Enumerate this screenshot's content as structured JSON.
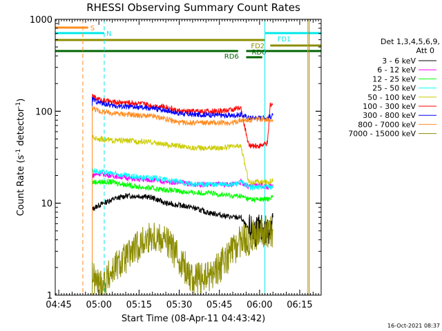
{
  "chart_data": {
    "type": "line",
    "title": "RHESSI Observing Summary Count Rates",
    "xlabel": "Start Time (08-Apr-11 04:43:42)",
    "ylabel_main": "Count Rate (s",
    "ylabel_sup1": "-1",
    "ylabel_mid": " detector",
    "ylabel_sup2": "-1",
    "ylabel_end": ")",
    "y_scale": "log",
    "ylim": [
      1,
      1000
    ],
    "xlim": [
      "04:43:42",
      "06:23:00"
    ],
    "x_ticks": [
      "04:45",
      "05:00",
      "05:15",
      "05:30",
      "05:45",
      "06:00",
      "06:15"
    ],
    "y_ticks": [
      "1",
      "10",
      "100",
      "1000"
    ],
    "legend_title_1": "Det 1,3,4,5,6,9,",
    "legend_title_2": "Att 0",
    "legend_placement": "right",
    "timestamp": "16-Oct-2021 08:37",
    "flag_bars": [
      {
        "label": "S",
        "color": "#ff8c20",
        "start": "04:43:42",
        "end": "04:56:00",
        "level": 1
      },
      {
        "label": "N",
        "color": "#00e8e8",
        "start": "04:43:42",
        "end": "05:02:00",
        "level": 2
      },
      {
        "label": "FD1",
        "color": "#8c8c00",
        "start": "04:43:42",
        "end": "06:02:00",
        "level": 3
      },
      {
        "label": "FD1",
        "color": "#00e8e8",
        "start": "06:02:00",
        "end": "06:23:00",
        "level": 2
      },
      {
        "label": "FD2",
        "color": "#8c8c00",
        "start": "06:04:00",
        "end": "06:23:00",
        "level": 4
      },
      {
        "label": "RD6",
        "color": "#006400",
        "start": "04:43:42",
        "end": "05:52:00",
        "level": 5
      },
      {
        "label": "RD6",
        "color": "#006400",
        "start": "05:55:00",
        "end": "06:23:00",
        "level": 5
      },
      {
        "label": "RD0",
        "color": "#006400",
        "start": "05:55:00",
        "end": "06:01:00",
        "level": 6
      }
    ],
    "vlines": [
      {
        "time": "04:54:00",
        "color": "#ff8c20",
        "dashed": true
      },
      {
        "time": "05:02:00",
        "color": "#00e8e8",
        "dashed": true
      },
      {
        "time": "06:02:00",
        "color": "#00e8e8",
        "dashed": false
      },
      {
        "time": "06:18:00",
        "color": "#ff8c20",
        "dashed": false
      },
      {
        "time": "06:18:30",
        "color": "#8c8c00",
        "dashed": false
      }
    ],
    "series": [
      {
        "name": "3 - 6 keV",
        "color": "#000000",
        "x": [
          "04:57:30",
          "04:58:30",
          "05:00",
          "05:05",
          "05:10",
          "05:15",
          "05:20",
          "05:25",
          "05:30",
          "05:35",
          "05:40",
          "05:45",
          "05:50",
          "05:53",
          "05:56",
          "06:00",
          "06:03",
          "06:05"
        ],
        "y": [
          8.5,
          9,
          9.5,
          11,
          12,
          12,
          11.5,
          10,
          9.5,
          9,
          8,
          7.5,
          7,
          7,
          5,
          5,
          5,
          7
        ]
      },
      {
        "name": "6 - 12 keV",
        "color": "#ff00ff",
        "x": [
          "04:57:30",
          "05:00",
          "05:05",
          "05:10",
          "05:15",
          "05:20",
          "05:25",
          "05:30",
          "05:35",
          "05:40",
          "05:45",
          "05:50",
          "05:53",
          "05:56",
          "06:00",
          "06:03",
          "06:05"
        ],
        "y": [
          20,
          21,
          20,
          19,
          18,
          18,
          17,
          17,
          16,
          16,
          16,
          16,
          17,
          15,
          16,
          15,
          16
        ]
      },
      {
        "name": "12 - 25 keV",
        "color": "#00ff00",
        "x": [
          "04:57:30",
          "05:00",
          "05:05",
          "05:10",
          "05:15",
          "05:20",
          "05:25",
          "05:30",
          "05:35",
          "05:40",
          "05:45",
          "05:50",
          "05:53",
          "05:56",
          "06:00",
          "06:03",
          "06:05"
        ],
        "y": [
          17,
          17,
          17,
          16,
          15,
          14.5,
          14,
          13.5,
          13,
          13,
          12.5,
          12,
          12,
          11,
          11,
          11,
          12
        ]
      },
      {
        "name": "25 - 50 keV",
        "color": "#00ffff",
        "x": [
          "04:57:30",
          "05:00",
          "05:05",
          "05:10",
          "05:15",
          "05:20",
          "05:25",
          "05:30",
          "05:35",
          "05:40",
          "05:45",
          "05:50",
          "05:53",
          "05:56",
          "06:00",
          "06:03",
          "06:05"
        ],
        "y": [
          23,
          22,
          21,
          20,
          19,
          19,
          18,
          17,
          16,
          16,
          16,
          16,
          17,
          15,
          15,
          15,
          15
        ]
      },
      {
        "name": "50 - 100 keV",
        "color": "#cccc00",
        "x": [
          "04:57:30",
          "05:00",
          "05:05",
          "05:10",
          "05:15",
          "05:20",
          "05:25",
          "05:30",
          "05:35",
          "05:40",
          "05:45",
          "05:50",
          "05:53",
          "05:56",
          "06:00",
          "06:03",
          "06:05"
        ],
        "y": [
          52,
          50,
          48,
          48,
          47,
          46,
          43,
          42,
          40,
          40,
          40,
          41,
          42,
          17,
          17,
          17,
          18
        ]
      },
      {
        "name": "100 - 300 keV",
        "color": "#ff0000",
        "x": [
          "04:57:30",
          "05:00",
          "05:05",
          "05:10",
          "05:15",
          "05:20",
          "05:25",
          "05:30",
          "05:35",
          "05:40",
          "05:45",
          "05:50",
          "05:53",
          "05:56",
          "06:00",
          "06:03",
          "06:04",
          "06:05"
        ],
        "y": [
          145,
          135,
          125,
          125,
          122,
          115,
          112,
          100,
          100,
          100,
          100,
          105,
          108,
          42,
          42,
          45,
          120,
          120
        ]
      },
      {
        "name": "300 - 800 keV",
        "color": "#0000ff",
        "x": [
          "04:57:30",
          "05:00",
          "05:05",
          "05:10",
          "05:15",
          "05:20",
          "05:25",
          "05:30",
          "05:35",
          "05:40",
          "05:45",
          "05:50",
          "05:53",
          "05:56",
          "06:00",
          "06:03",
          "06:05"
        ],
        "y": [
          135,
          125,
          115,
          112,
          110,
          107,
          103,
          95,
          92,
          92,
          90,
          90,
          92,
          85,
          85,
          85,
          90
        ]
      },
      {
        "name": "800 - 7000 keV",
        "color": "#ff8c20",
        "x": [
          "04:57:30",
          "05:00",
          "05:05",
          "05:10",
          "05:15",
          "05:20",
          "05:25",
          "05:30",
          "05:35",
          "05:40",
          "05:45",
          "05:50",
          "05:53",
          "05:56",
          "06:00",
          "06:03",
          "06:05"
        ],
        "y": [
          110,
          100,
          95,
          93,
          90,
          88,
          83,
          75,
          75,
          75,
          75,
          75,
          80,
          80,
          82,
          82,
          80
        ]
      },
      {
        "name": "7000 - 15000 keV",
        "color": "#8c8c00",
        "x": [
          "04:57:30",
          "04:58",
          "05:00",
          "05:03",
          "05:06",
          "05:10",
          "05:15",
          "05:20",
          "05:25",
          "05:30",
          "05:35",
          "05:40",
          "05:45",
          "05:50",
          "05:53",
          "05:56",
          "06:00",
          "06:03",
          "06:05"
        ],
        "y": [
          2,
          1.5,
          1.3,
          1.5,
          2,
          2.5,
          3.5,
          4.5,
          4,
          2.5,
          1.5,
          1.5,
          2,
          3,
          4,
          4,
          5,
          5,
          5
        ]
      }
    ]
  }
}
